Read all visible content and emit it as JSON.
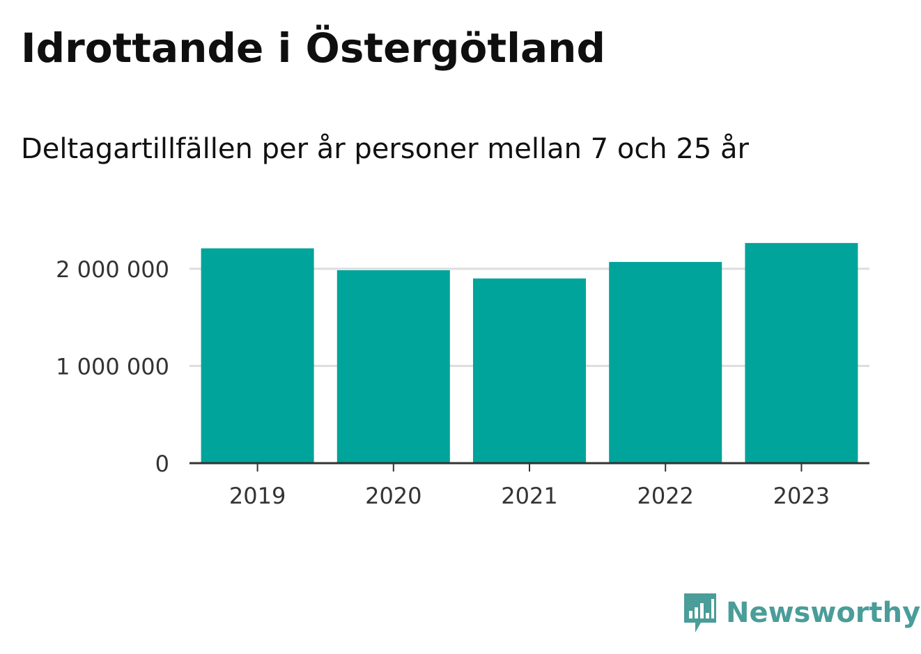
{
  "header": {
    "title": "Idrottande i Östergötland",
    "subtitle": "Deltagartillfällen per år personer mellan 7 och 25 år"
  },
  "brand": {
    "name": "Newsworthy",
    "icon": "newsworthy-logo-icon",
    "color": "#4a9d98"
  },
  "chart_data": {
    "type": "bar",
    "categories": [
      "2019",
      "2020",
      "2021",
      "2022",
      "2023"
    ],
    "values": [
      2210000,
      1985000,
      1900000,
      2070000,
      2265000
    ],
    "yticks": [
      0,
      1000000,
      2000000
    ],
    "ytick_labels": [
      "0",
      "1 000 000",
      "2 000 000"
    ],
    "ylim": [
      0,
      2300000
    ],
    "grid": true,
    "bar_color": "#00a49a",
    "grid_color": "#dddddd",
    "axis_color": "#333333"
  }
}
